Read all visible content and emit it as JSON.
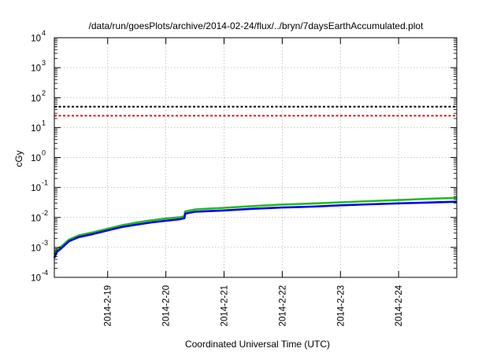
{
  "chart_data": {
    "type": "line",
    "title": "/data/run/goesPlots/archive/2014-02-24/flux/../bryn/7daysEarthAccumulated.plot",
    "xlabel": "Coordinated Universal Time (UTC)",
    "ylabel": "cGy",
    "x_scale": "time (days)",
    "xlim": [
      "2014-2-18 02:00",
      "2014-2-24 23:59"
    ],
    "x_ticks": [
      "2014-2-19",
      "2014-2-20",
      "2014-2-21",
      "2014-2-22",
      "2014-2-23",
      "2014-2-24"
    ],
    "y_scale": "log",
    "ylim": [
      0.0001,
      10000
    ],
    "y_ticks": [
      {
        "base": "10",
        "exp": "-4"
      },
      {
        "base": "10",
        "exp": "-3"
      },
      {
        "base": "10",
        "exp": "-2"
      },
      {
        "base": "10",
        "exp": "-1"
      },
      {
        "base": "10",
        "exp": "0"
      },
      {
        "base": "10",
        "exp": "1"
      },
      {
        "base": "10",
        "exp": "2"
      },
      {
        "base": "10",
        "exp": "3"
      },
      {
        "base": "10",
        "exp": "4"
      }
    ],
    "grid": true,
    "thresholds": [
      {
        "value": 50,
        "color": "#000000",
        "style": "dashed"
      },
      {
        "value": 25,
        "color": "#ff0000",
        "style": "dashed"
      }
    ],
    "series": [
      {
        "color": "#22bb22",
        "points": [
          [
            "2014-2-18 02:00",
            0.0006
          ],
          [
            "2014-2-18 03:00",
            0.00085
          ],
          [
            "2014-2-18 05:00",
            0.0011
          ],
          [
            "2014-2-18 08:00",
            0.0018
          ],
          [
            "2014-2-18 12:00",
            0.0025
          ],
          [
            "2014-2-18 18:00",
            0.0032
          ],
          [
            "2014-2-19 00:00",
            0.0042
          ],
          [
            "2014-2-19 06:00",
            0.0055
          ],
          [
            "2014-2-19 12:00",
            0.0068
          ],
          [
            "2014-2-19 18:00",
            0.008
          ],
          [
            "2014-2-20 00:00",
            0.0092
          ],
          [
            "2014-2-20 06:00",
            0.0102
          ],
          [
            "2014-2-20 07:40",
            0.011
          ],
          [
            "2014-2-20 08:00",
            0.016
          ],
          [
            "2014-2-20 12:00",
            0.0185
          ],
          [
            "2014-2-21 00:00",
            0.021
          ],
          [
            "2014-2-21 12:00",
            0.024
          ],
          [
            "2014-2-22 00:00",
            0.027
          ],
          [
            "2014-2-22 12:00",
            0.029
          ],
          [
            "2014-2-23 00:00",
            0.032
          ],
          [
            "2014-2-23 12:00",
            0.035
          ],
          [
            "2014-2-24 00:00",
            0.038
          ],
          [
            "2014-2-24 12:00",
            0.042
          ],
          [
            "2014-2-24 23:59",
            0.045
          ]
        ]
      },
      {
        "color": "#0000ee",
        "points": [
          [
            "2014-2-18 02:00",
            0.00045
          ],
          [
            "2014-2-18 03:00",
            0.0007
          ],
          [
            "2014-2-18 05:00",
            0.00095
          ],
          [
            "2014-2-18 08:00",
            0.0016
          ],
          [
            "2014-2-18 12:00",
            0.0022
          ],
          [
            "2014-2-18 18:00",
            0.0028
          ],
          [
            "2014-2-19 00:00",
            0.0037
          ],
          [
            "2014-2-19 06:00",
            0.0048
          ],
          [
            "2014-2-19 12:00",
            0.0058
          ],
          [
            "2014-2-19 18:00",
            0.0068
          ],
          [
            "2014-2-20 00:00",
            0.0078
          ],
          [
            "2014-2-20 06:00",
            0.0088
          ],
          [
            "2014-2-20 07:40",
            0.0095
          ],
          [
            "2014-2-20 08:00",
            0.0135
          ],
          [
            "2014-2-20 12:00",
            0.0155
          ],
          [
            "2014-2-21 00:00",
            0.0172
          ],
          [
            "2014-2-21 12:00",
            0.0195
          ],
          [
            "2014-2-22 00:00",
            0.0215
          ],
          [
            "2014-2-22 12:00",
            0.023
          ],
          [
            "2014-2-23 00:00",
            0.0255
          ],
          [
            "2014-2-23 12:00",
            0.0275
          ],
          [
            "2014-2-24 00:00",
            0.0295
          ],
          [
            "2014-2-24 12:00",
            0.0315
          ],
          [
            "2014-2-24 23:59",
            0.0335
          ]
        ]
      }
    ]
  }
}
